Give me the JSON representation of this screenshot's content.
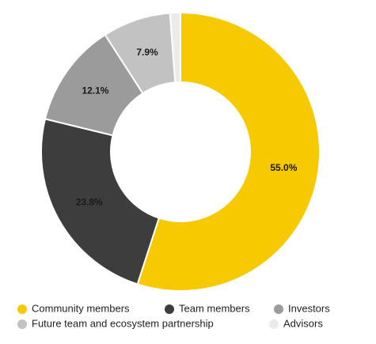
{
  "chart_data": {
    "type": "donut",
    "categories": [
      "Community members",
      "Team members",
      "Investors",
      "Future team and ecosystem partnership",
      "Advisors"
    ],
    "values": [
      55.0,
      23.8,
      12.1,
      7.9,
      1.2
    ],
    "value_labels": [
      "55.0%",
      "23.8%",
      "12.1%",
      "7.9%",
      null
    ],
    "colors": [
      "#f7c900",
      "#3d3d3d",
      "#9b9b9b",
      "#c2c2c2",
      "#ebebeb"
    ],
    "legend": "bottom"
  }
}
